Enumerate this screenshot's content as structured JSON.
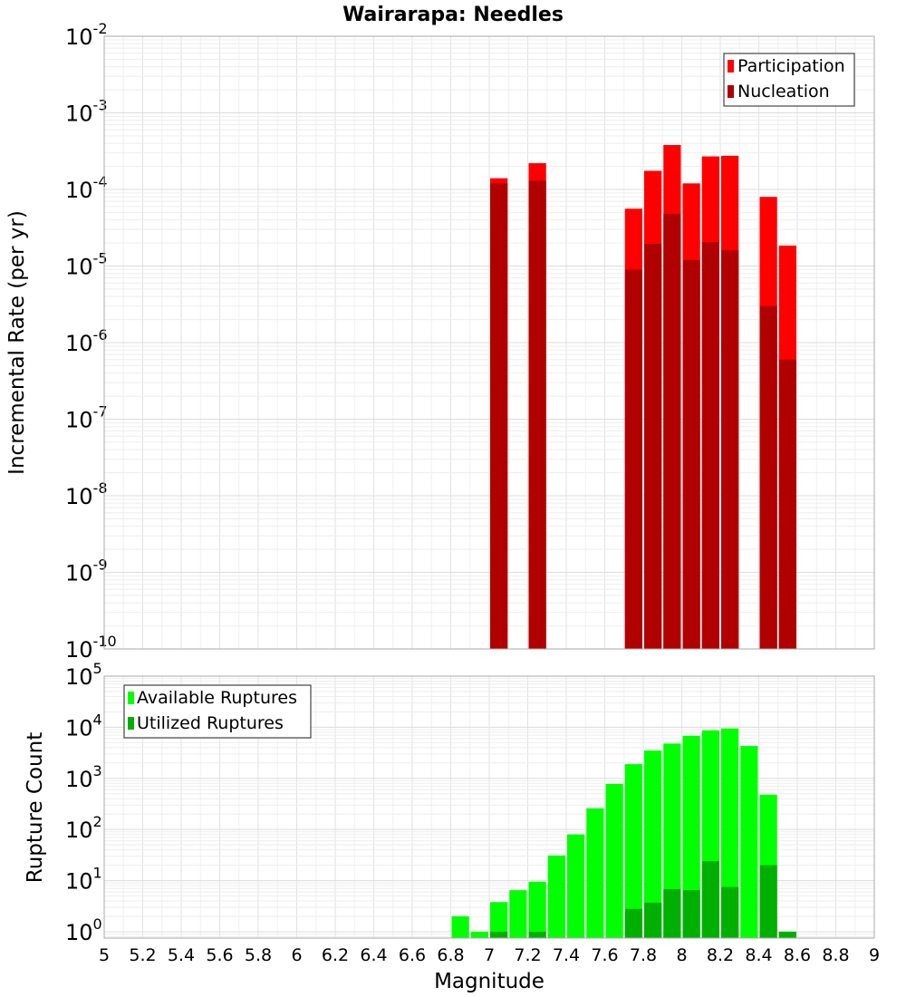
{
  "chart_data": [
    {
      "type": "bar",
      "title": "Wairarapa: Needles",
      "xlabel": "",
      "ylabel": "Incremental Rate (per yr)",
      "yscale": "log",
      "ylim": [
        1e-10,
        0.01
      ],
      "xlim": [
        5,
        9
      ],
      "grid": true,
      "legend_position": "top-right",
      "x": [
        7.05,
        7.25,
        7.75,
        7.85,
        7.95,
        8.05,
        8.15,
        8.25,
        8.45,
        8.55
      ],
      "series": [
        {
          "name": "Participation",
          "color": "#ff0000",
          "values": [
            0.00014,
            0.00022,
            5.6e-05,
            0.000175,
            0.00038,
            0.00012,
            0.00027,
            0.000275,
            8e-05,
            1.85e-05
          ]
        },
        {
          "name": "Nucleation",
          "color": "#b00000",
          "values": [
            0.00012,
            0.00013,
            9e-06,
            1.95e-05,
            4.8e-05,
            1.2e-05,
            2.05e-05,
            1.6e-05,
            3e-06,
            6e-07
          ]
        }
      ],
      "ytick_labels": [
        {
          "base": "10",
          "exp": "-2"
        },
        {
          "base": "10",
          "exp": "-3"
        },
        {
          "base": "10",
          "exp": "-4"
        },
        {
          "base": "10",
          "exp": "-5"
        },
        {
          "base": "10",
          "exp": "-6"
        },
        {
          "base": "10",
          "exp": "-7"
        },
        {
          "base": "10",
          "exp": "-8"
        },
        {
          "base": "10",
          "exp": "-9"
        },
        {
          "base": "10",
          "exp": "-10"
        }
      ]
    },
    {
      "type": "bar",
      "title": "",
      "xlabel": "Magnitude",
      "ylabel": "Rupture Count",
      "yscale": "log",
      "ylim": [
        0.75,
        100000.0
      ],
      "xlim": [
        5,
        9
      ],
      "grid": true,
      "legend_position": "top-left",
      "x": [
        6.85,
        6.95,
        7.05,
        7.15,
        7.25,
        7.35,
        7.45,
        7.55,
        7.65,
        7.75,
        7.85,
        7.95,
        8.05,
        8.15,
        8.25,
        8.35,
        8.45,
        8.55
      ],
      "series": [
        {
          "name": "Available Ruptures",
          "color": "#00ff00",
          "values": [
            2,
            1,
            3.8,
            6.5,
            9.5,
            31,
            80,
            260,
            780,
            1900,
            3500,
            4800,
            6800,
            8700,
            9500,
            4300,
            480,
            1
          ]
        },
        {
          "name": "Utilized Ruptures",
          "color": "#00b000",
          "values": [
            0,
            0,
            1,
            0,
            1,
            0,
            0,
            0,
            0,
            2.8,
            3.7,
            6.8,
            6.5,
            24,
            7.5,
            0,
            20,
            1
          ]
        }
      ],
      "ytick_labels": [
        {
          "base": "10",
          "exp": "5"
        },
        {
          "base": "10",
          "exp": "4"
        },
        {
          "base": "10",
          "exp": "3"
        },
        {
          "base": "10",
          "exp": "2"
        },
        {
          "base": "10",
          "exp": "1"
        },
        {
          "base": "10",
          "exp": "0"
        }
      ],
      "xtick_labels": [
        "5",
        "5.2",
        "5.4",
        "5.6",
        "5.8",
        "6",
        "6.2",
        "6.4",
        "6.6",
        "6.8",
        "7",
        "7.2",
        "7.4",
        "7.6",
        "7.8",
        "8",
        "8.2",
        "8.4",
        "8.6",
        "8.8",
        "9"
      ]
    }
  ]
}
